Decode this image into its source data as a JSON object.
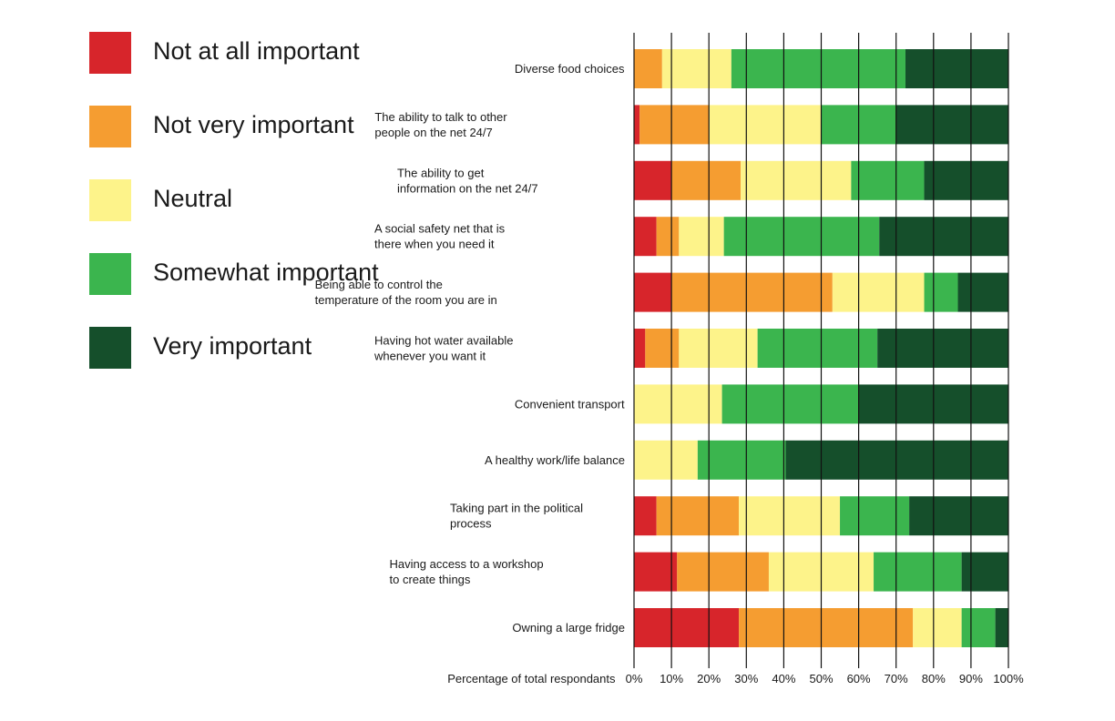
{
  "chart_data": {
    "type": "bar",
    "orientation": "horizontal",
    "stacked": true,
    "title": "",
    "xlabel": "Percentage of total respondants",
    "ylabel": "",
    "xlim": [
      0,
      100
    ],
    "x_ticks": [
      "0%",
      "10%",
      "20%",
      "30%",
      "40%",
      "50%",
      "60%",
      "70%",
      "80%",
      "90%",
      "100%"
    ],
    "grid": "vertical",
    "legend_position": "left",
    "categories": [
      "Diverse food choices",
      "The ability to talk to other people on the net 24/7",
      "The ability to get information on the net 24/7",
      "A social safety net that is there when you need it",
      "Being able to control the temperature of the room you are in",
      "Having hot water available whenever you want it",
      "Convenient transport",
      "A healthy work/life balance",
      "Taking part in the political process",
      "Having access to a workshop to create things",
      "Owning a large fridge"
    ],
    "category_lines": [
      [
        "Diverse food choices"
      ],
      [
        "The ability to talk to other",
        "people on the net 24/7"
      ],
      [
        "The ability to get",
        "information on the net 24/7"
      ],
      [
        "A social safety net that is",
        "there when you need it"
      ],
      [
        "Being able to control the",
        "temperature of the room you are in"
      ],
      [
        "Having hot water available",
        "whenever you want it"
      ],
      [
        "Convenient transport"
      ],
      [
        "A healthy work/life balance"
      ],
      [
        "Taking part in the political",
        "process"
      ],
      [
        "Having access to a workshop",
        "to create things"
      ],
      [
        "Owning a large fridge"
      ]
    ],
    "series": [
      {
        "name": "Not at all important",
        "color": "#d7252b",
        "values": [
          0,
          1.5,
          10,
          6,
          10,
          3,
          0,
          0,
          6,
          11.5,
          28
        ]
      },
      {
        "name": "Not very important",
        "color": "#f59d31",
        "values": [
          7.5,
          18.5,
          18.5,
          6,
          43,
          9,
          0,
          0,
          22,
          24.5,
          46.5
        ]
      },
      {
        "name": "Neutral",
        "color": "#fdf38a",
        "values": [
          18.5,
          30,
          29.5,
          12,
          24.5,
          21,
          23.5,
          17,
          27,
          28,
          13
        ]
      },
      {
        "name": "Somewhat important",
        "color": "#3bb54e",
        "values": [
          46.5,
          20,
          19.5,
          41.5,
          9,
          32,
          36.5,
          23.5,
          18.5,
          23.5,
          9
        ]
      },
      {
        "name": "Very important",
        "color": "#154f2b",
        "values": [
          27.5,
          30,
          22.5,
          34.5,
          13.5,
          35,
          40,
          59.5,
          26.5,
          12.5,
          3.5
        ]
      }
    ]
  }
}
